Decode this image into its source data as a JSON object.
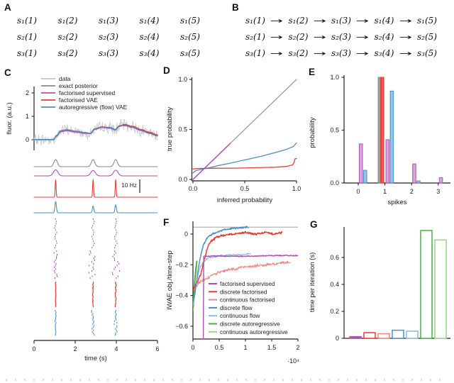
{
  "figure": {
    "panel_labels": [
      "A",
      "B",
      "C",
      "D",
      "E",
      "F",
      "G"
    ]
  },
  "colors": {
    "data_gray": "#c4c4c4",
    "exact_gray": "#8a8a8a",
    "purple": "#b052b0",
    "red": "#e63c37",
    "light_red": "#f4837e",
    "blue": "#4d8fc4",
    "light_blue": "#8fb9dd",
    "green": "#50ab4b",
    "light_green": "#98d38e",
    "axis": "#222222",
    "ref_gray": "#a6a6a6"
  },
  "panel_a": {
    "rows": [
      [
        "s₁(1)",
        "s₁(2)",
        "s₁(3)",
        "s₁(4)",
        "s₁(5)"
      ],
      [
        "s₂(1)",
        "s₂(2)",
        "s₂(3)",
        "s₂(4)",
        "s₂(5)"
      ],
      [
        "s₃(1)",
        "s₃(2)",
        "s₃(3)",
        "s₃(4)",
        "s₃(5)"
      ]
    ]
  },
  "panel_b": {
    "arrow": "→",
    "rows": [
      [
        "s₁(1)",
        "s₁(2)",
        "s₁(3)",
        "s₁(4)",
        "s₁(5)"
      ],
      [
        "s₂(1)",
        "s₂(2)",
        "s₂(3)",
        "s₂(4)",
        "s₂(5)"
      ],
      [
        "s₃(1)",
        "s₃(2)",
        "s₃(3)",
        "s₃(4)",
        "s₃(5)"
      ]
    ]
  },
  "chart_data": [
    {
      "id": "C",
      "type": "line",
      "ylabel": "fluor. (a.u.)",
      "xlabel": "time (s)",
      "yticks": [
        2,
        1,
        0
      ],
      "xticks": [
        0,
        2,
        4,
        6
      ],
      "xlim": [
        0,
        6
      ],
      "legend": [
        "data",
        "exact posterior",
        "factorised supervised",
        "factorised VAE",
        "autoregressive (flow) VAE"
      ],
      "legend_colors": [
        "data_gray",
        "exact_gray",
        "purple",
        "red",
        "blue"
      ],
      "scalebar": "10 Hz",
      "spike_times": [
        1.05,
        2.87,
        3.97
      ],
      "fluor_trace": [
        [
          0,
          0
        ],
        [
          0.95,
          0
        ],
        [
          1.1,
          0.18
        ],
        [
          1.3,
          0.38
        ],
        [
          1.6,
          0.42
        ],
        [
          2.0,
          0.36
        ],
        [
          2.5,
          0.3
        ],
        [
          2.75,
          0.27
        ],
        [
          2.95,
          0.45
        ],
        [
          3.3,
          0.53
        ],
        [
          3.7,
          0.5
        ],
        [
          3.95,
          0.42
        ],
        [
          4.15,
          0.58
        ],
        [
          4.4,
          0.63
        ],
        [
          4.8,
          0.55
        ],
        [
          5.2,
          0.42
        ],
        [
          5.6,
          0.3
        ],
        [
          6,
          0.19
        ]
      ],
      "noise_amp": 0.3
    },
    {
      "id": "D",
      "type": "line",
      "xlabel": "inferred probability",
      "ylabel": "true probability",
      "xticks": [
        "0.0",
        "0.5",
        "1.0"
      ],
      "yticks": [
        "0.0",
        "0.5",
        "1.0"
      ],
      "xlim": [
        0,
        1
      ],
      "ylim": [
        0,
        1
      ],
      "series": [
        {
          "name": "exact posterior (identity)",
          "color": "exact_gray",
          "width": 1.1,
          "points": [
            [
              0,
              0
            ],
            [
              1,
              1
            ]
          ]
        },
        {
          "name": "autoregressive (flow) VAE",
          "color": "blue",
          "width": 1.3,
          "points": [
            [
              0,
              0.065
            ],
            [
              0.03,
              0.09
            ],
            [
              0.08,
              0.1
            ],
            [
              0.15,
              0.115
            ],
            [
              0.25,
              0.14
            ],
            [
              0.35,
              0.16
            ],
            [
              0.5,
              0.195
            ],
            [
              0.65,
              0.23
            ],
            [
              0.8,
              0.27
            ],
            [
              0.9,
              0.3
            ],
            [
              0.97,
              0.33
            ],
            [
              1,
              0.365
            ]
          ]
        },
        {
          "name": "factorised VAE",
          "color": "red",
          "width": 1.3,
          "points": [
            [
              0,
              0.105
            ],
            [
              0.05,
              0.11
            ],
            [
              0.2,
              0.112
            ],
            [
              0.4,
              0.113
            ],
            [
              0.6,
              0.117
            ],
            [
              0.8,
              0.123
            ],
            [
              0.9,
              0.13
            ],
            [
              0.96,
              0.145
            ],
            [
              0.975,
              0.165
            ],
            [
              0.985,
              0.205
            ],
            [
              1,
              0.21
            ]
          ]
        },
        {
          "name": "factorised supervised",
          "color": "purple",
          "width": 1.5,
          "points": [
            [
              0,
              0
            ],
            [
              0.36,
              0.36
            ]
          ]
        }
      ]
    },
    {
      "id": "E",
      "type": "bar",
      "xlabel": "spikes",
      "ylabel": "probability",
      "categories": [
        0,
        1,
        2,
        3
      ],
      "yticks": [
        "0.0",
        "0.5",
        "1.0"
      ],
      "series": [
        {
          "name": "exact posterior",
          "color": "exact_gray",
          "values": [
            0,
            1.0,
            0,
            0
          ]
        },
        {
          "name": "factorised VAE",
          "color": "red",
          "values": [
            0,
            1.0,
            0,
            0
          ]
        },
        {
          "name": "factorised supervised",
          "color": "purple",
          "values": [
            0.37,
            0.41,
            0.18,
            0.05
          ]
        },
        {
          "name": "autoregressive (flow) VAE",
          "color": "blue",
          "values": [
            0.12,
            0.87,
            0.02,
            0
          ]
        }
      ]
    },
    {
      "id": "F",
      "type": "line",
      "ylabel": "IWAE obj./time-step",
      "xticks": [
        "0",
        "0.5",
        "1",
        "1.5",
        "2"
      ],
      "yticks": [
        "0",
        "−0.2",
        "−0.4",
        "−0.6"
      ],
      "x_scale_label": "·10⁴",
      "reference_value": 0.045,
      "legend": [
        "factorised supervised",
        "discrete factorised",
        "continuous factorised",
        "discrete flow",
        "continuous flow",
        "discrete autoregressive",
        "continuous autoregressive"
      ],
      "legend_colors": [
        "purple",
        "red",
        "light_red",
        "blue",
        "light_blue",
        "green",
        "light_green"
      ],
      "series": [
        {
          "name": "continuous autoregressive",
          "color": "light_green",
          "width": 1.2,
          "noise": 0.01,
          "points": [
            [
              0.01,
              -0.49
            ],
            [
              0.02,
              -0.41
            ],
            [
              0.04,
              -0.32
            ],
            [
              0.06,
              -0.25
            ],
            [
              0.08,
              -0.2
            ]
          ]
        },
        {
          "name": "discrete autoregressive",
          "color": "green",
          "width": 1.9,
          "noise": 0.01,
          "points": [
            [
              0.01,
              -0.46
            ],
            [
              0.02,
              -0.38
            ],
            [
              0.04,
              -0.28
            ],
            [
              0.06,
              -0.21
            ],
            [
              0.08,
              -0.16
            ]
          ]
        },
        {
          "name": "continuous factorised",
          "color": "light_red",
          "width": 1.0,
          "noise": 0.013,
          "points": [
            [
              0.01,
              -0.36
            ],
            [
              0.1,
              -0.32
            ],
            [
              0.2,
              -0.3
            ],
            [
              0.35,
              -0.27
            ],
            [
              0.5,
              -0.25
            ],
            [
              0.7,
              -0.23
            ],
            [
              0.9,
              -0.22
            ],
            [
              1.1,
              -0.21
            ],
            [
              1.4,
              -0.2
            ],
            [
              1.6,
              -0.19
            ],
            [
              1.85,
              -0.185
            ]
          ]
        },
        {
          "name": "continuous flow",
          "color": "light_blue",
          "width": 1.0,
          "noise": 0.009,
          "points": [
            [
              0.01,
              -0.47
            ],
            [
              0.05,
              -0.34
            ],
            [
              0.1,
              -0.26
            ],
            [
              0.15,
              -0.21
            ],
            [
              0.2,
              -0.18
            ],
            [
              0.3,
              -0.155
            ],
            [
              0.45,
              -0.145
            ],
            [
              0.6,
              -0.14
            ],
            [
              0.8,
              -0.135
            ],
            [
              1.1,
              -0.13
            ]
          ]
        },
        {
          "name": "discrete factorised",
          "color": "red",
          "width": 1.5,
          "noise": 0.008,
          "points": [
            [
              0.01,
              -0.36
            ],
            [
              0.05,
              -0.33
            ],
            [
              0.1,
              -0.3
            ],
            [
              0.15,
              -0.26
            ],
            [
              0.2,
              -0.19
            ],
            [
              0.25,
              -0.12
            ],
            [
              0.3,
              -0.07
            ],
            [
              0.35,
              -0.045
            ],
            [
              0.45,
              -0.02
            ],
            [
              0.6,
              -0.005
            ],
            [
              0.8,
              0.0
            ],
            [
              1.0,
              0.01
            ],
            [
              1.2,
              0.0
            ],
            [
              1.4,
              0.01
            ],
            [
              1.55,
              0.0
            ],
            [
              1.7,
              0.01
            ]
          ]
        },
        {
          "name": "discrete flow",
          "color": "blue",
          "width": 1.5,
          "noise": 0.007,
          "points": [
            [
              0.01,
              -0.44
            ],
            [
              0.05,
              -0.36
            ],
            [
              0.08,
              -0.28
            ],
            [
              0.12,
              -0.19
            ],
            [
              0.16,
              -0.12
            ],
            [
              0.2,
              -0.07
            ],
            [
              0.25,
              -0.035
            ],
            [
              0.3,
              -0.015
            ],
            [
              0.4,
              0.005
            ],
            [
              0.55,
              0.025
            ],
            [
              0.7,
              0.035
            ],
            [
              0.85,
              0.04
            ],
            [
              1.05,
              0.045
            ]
          ]
        },
        {
          "name": "factorised supervised",
          "color": "purple",
          "width": 1.4,
          "noise": 0.004,
          "points": [
            [
              0.197,
              -0.685
            ],
            [
              0.2,
              -0.145
            ],
            [
              0.5,
              -0.143
            ],
            [
              1.0,
              -0.145
            ],
            [
              1.5,
              -0.14
            ],
            [
              2.0,
              -0.14
            ]
          ]
        }
      ]
    },
    {
      "id": "G",
      "type": "bar",
      "ylabel": "time per iteration (s)",
      "yticks": [
        "0",
        "0.2",
        "0.4",
        "0.6"
      ],
      "bars": [
        {
          "name": "factorised supervised",
          "color": "purple",
          "value": 0.012,
          "filled": true
        },
        {
          "name": "discrete factorised",
          "color": "red",
          "value": 0.042
        },
        {
          "name": "continuous factorised",
          "color": "light_red",
          "value": 0.034
        },
        {
          "name": "discrete flow",
          "color": "blue",
          "value": 0.06
        },
        {
          "name": "continuous flow",
          "color": "light_blue",
          "value": 0.053
        },
        {
          "name": "discrete autoregressive",
          "color": "green",
          "value": 0.8
        },
        {
          "name": "continuous autoregressive",
          "color": "light_green",
          "value": 0.73
        }
      ]
    }
  ]
}
